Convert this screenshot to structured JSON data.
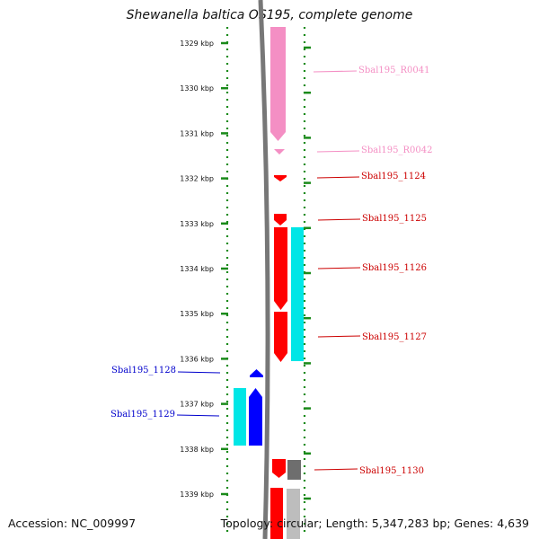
{
  "title": "Shewanella baltica OS195, complete genome",
  "footer": {
    "accession": "Accession: NC_009997",
    "summary": "Topology: circular; Length: 5,347,283 bp; Genes: 4,639"
  },
  "axis": {
    "unit": "kbp",
    "ticks": [
      "1329 kbp",
      "1330 kbp",
      "1331 kbp",
      "1332 kbp",
      "1333 kbp",
      "1334 kbp",
      "1335 kbp",
      "1336 kbp",
      "1337 kbp",
      "1338 kbp",
      "1339 kbp"
    ]
  },
  "colors": {
    "rna": "#f48fc4",
    "forward_gene": "#ff0000",
    "reverse_gene": "#0000ff",
    "cds": "#00e6e6",
    "backbone": "#777777",
    "tick_dots": "#1a8a1a"
  },
  "genes": [
    {
      "name": "Sbal195_R0041",
      "strand": "+",
      "type": "rna",
      "color": "#f48fc4",
      "label_color": "#f48fc4"
    },
    {
      "name": "Sbal195_R0042",
      "strand": "+",
      "type": "rna",
      "color": "#f48fc4",
      "label_color": "#f48fc4"
    },
    {
      "name": "Sbal195_1124",
      "strand": "+",
      "type": "gene",
      "color": "#ff0000",
      "label_color": "#cc0000"
    },
    {
      "name": "Sbal195_1125",
      "strand": "+",
      "type": "gene",
      "color": "#ff0000",
      "label_color": "#cc0000"
    },
    {
      "name": "Sbal195_1126",
      "strand": "+",
      "type": "gene",
      "color": "#ff0000",
      "label_color": "#cc0000"
    },
    {
      "name": "Sbal195_1127",
      "strand": "+",
      "type": "gene",
      "color": "#ff0000",
      "label_color": "#cc0000"
    },
    {
      "name": "Sbal195_1128",
      "strand": "-",
      "type": "gene",
      "color": "#0000ff",
      "label_color": "#0000cc"
    },
    {
      "name": "Sbal195_1129",
      "strand": "-",
      "type": "gene",
      "color": "#0000ff",
      "label_color": "#0000cc"
    },
    {
      "name": "Sbal195_1130",
      "strand": "+",
      "type": "gene",
      "color": "#ff0000",
      "label_color": "#cc0000"
    }
  ]
}
